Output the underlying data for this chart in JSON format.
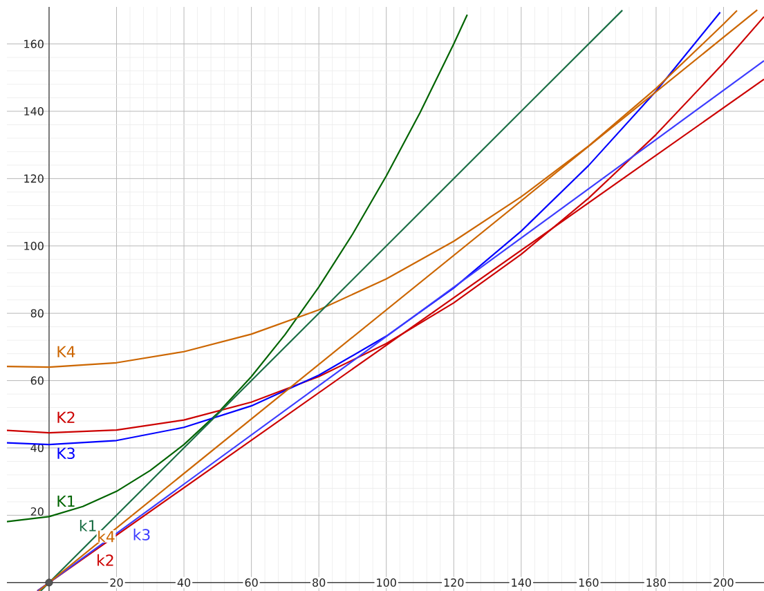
{
  "chart_data": {
    "type": "line",
    "xlim": [
      -12.5,
      212
    ],
    "ylim": [
      -2.5,
      171
    ],
    "xticks": [
      20,
      40,
      60,
      80,
      100,
      120,
      140,
      160,
      180,
      200
    ],
    "yticks": [
      20,
      40,
      60,
      80,
      100,
      120,
      140,
      160
    ],
    "grid": true,
    "series": [
      {
        "name": "K1",
        "color": "#006400",
        "x": [
          -12.5,
          0,
          10,
          20,
          30,
          40,
          50,
          60,
          70,
          80,
          90,
          100,
          110,
          120,
          124
        ],
        "values": [
          18.1,
          19.6,
          22.6,
          27.1,
          33.3,
          41.0,
          50.3,
          61.2,
          73.7,
          87.8,
          103.5,
          120.8,
          139.6,
          160.0,
          168.7
        ]
      },
      {
        "name": "K2",
        "color": "#cc0000",
        "x": [
          -12.5,
          0,
          20,
          40,
          60,
          80,
          100,
          120,
          140,
          160,
          180,
          200,
          212
        ],
        "values": [
          45.2,
          44.5,
          45.3,
          48.3,
          53.6,
          61.2,
          71.0,
          83.1,
          97.5,
          114.2,
          133.1,
          154.3,
          168.1
        ]
      },
      {
        "name": "K3",
        "color": "#0000ff",
        "x": [
          -12.5,
          0,
          20,
          40,
          60,
          80,
          100,
          120,
          140,
          160,
          180,
          199
        ],
        "values": [
          41.5,
          41.0,
          42.2,
          46.1,
          52.5,
          61.6,
          73.2,
          87.5,
          104.4,
          123.9,
          146.0,
          169.4
        ]
      },
      {
        "name": "K4",
        "color": "#cc6600",
        "x": [
          -12.5,
          0,
          20,
          40,
          60,
          80,
          100,
          120,
          140,
          160,
          180,
          200,
          204
        ],
        "values": [
          64.2,
          64.0,
          65.3,
          68.6,
          73.8,
          81.0,
          90.2,
          101.4,
          114.6,
          129.7,
          146.8,
          165.9,
          169.9
        ]
      },
      {
        "name": "k1",
        "color": "#1a6e45",
        "x": [
          -2.5,
          170
        ],
        "values": [
          -2.5,
          170
        ]
      },
      {
        "name": "k2",
        "color": "#cc0000",
        "x": [
          -3.5,
          212
        ],
        "values": [
          -2.5,
          149.5
        ]
      },
      {
        "name": "k3",
        "color": "#3c3cff",
        "x": [
          -3.4,
          212
        ],
        "values": [
          -2.5,
          155.0
        ]
      },
      {
        "name": "k4",
        "color": "#cc6600",
        "x": [
          -3.1,
          210
        ],
        "values": [
          -2.5,
          170.1
        ]
      },
      {
        "type": "scatter",
        "marker": "circle",
        "color": "#555555",
        "x": [
          0
        ],
        "values": [
          0
        ]
      }
    ]
  }
}
